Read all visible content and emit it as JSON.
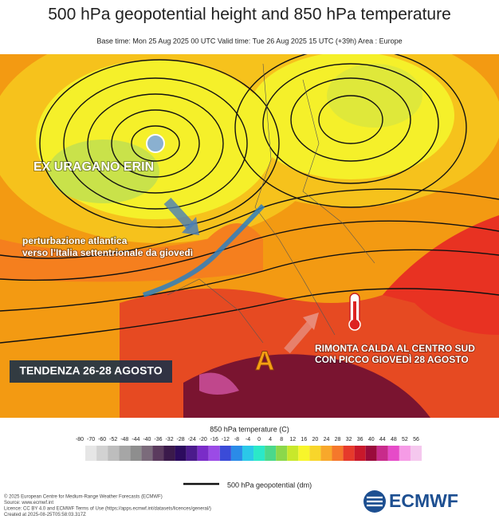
{
  "header": {
    "title": "500 hPa geopotential height and 850 hPa temperature",
    "subtitle": "Base time: Mon 25 Aug 2025 00 UTC Valid time: Tue 26 Aug 2025 15 UTC (+39h) Area : Europe"
  },
  "annotations": {
    "storm": "EX URAGANO ERIN",
    "front_line1": "perturbazione atlantica",
    "front_line2": "verso l’Italia settentrionale da giovedì",
    "trend": "TENDENZA 26-28 AGOSTO",
    "high": "A",
    "heat_line1": "RIMONTA CALDA AL CENTRO SUD",
    "heat_line2": "CON PICCO GIOVEDÌ 28 AGOSTO"
  },
  "colorbar": {
    "title": "850 hPa temperature (C)",
    "ticks": [
      -80,
      -70,
      -60,
      -52,
      -48,
      -44,
      -40,
      -36,
      -32,
      -28,
      -24,
      -20,
      -16,
      -12,
      -8,
      -4,
      0,
      4,
      8,
      12,
      16,
      20,
      24,
      28,
      32,
      36,
      40,
      44,
      48,
      52,
      56
    ],
    "colors": [
      "#e6e6e6",
      "#d2d2d2",
      "#bdbdbd",
      "#a6a6a6",
      "#8e8e8e",
      "#7b6b7b",
      "#5b3b5e",
      "#3b1a4b",
      "#2c0b5e",
      "#4b1b8c",
      "#7a2cc8",
      "#9b4be6",
      "#3b4bd8",
      "#2b8be8",
      "#2bc8e8",
      "#2be8c8",
      "#4bd88b",
      "#8bd84b",
      "#c8e82b",
      "#f8f52b",
      "#f8d62b",
      "#f8a82b",
      "#f5782b",
      "#e63a2b",
      "#c8182b",
      "#9a0b3b",
      "#c82b8b",
      "#e64bc8",
      "#f69be6",
      "#f5c8ee"
    ]
  },
  "line_legend": "500 hPa geopotential (dm)",
  "footer": [
    "© 2025 European Centre for Medium-Range Weather Forecasts (ECMWF)",
    "Source: www.ecmwf.int",
    "Licence: CC BY 4.0 and ECMWF Terms of Use (https://apps.ecmwf.int/datasets/licences/general/)",
    "Created at 2025-08-25T05:58:03.317Z"
  ],
  "logo": "ECMWF"
}
